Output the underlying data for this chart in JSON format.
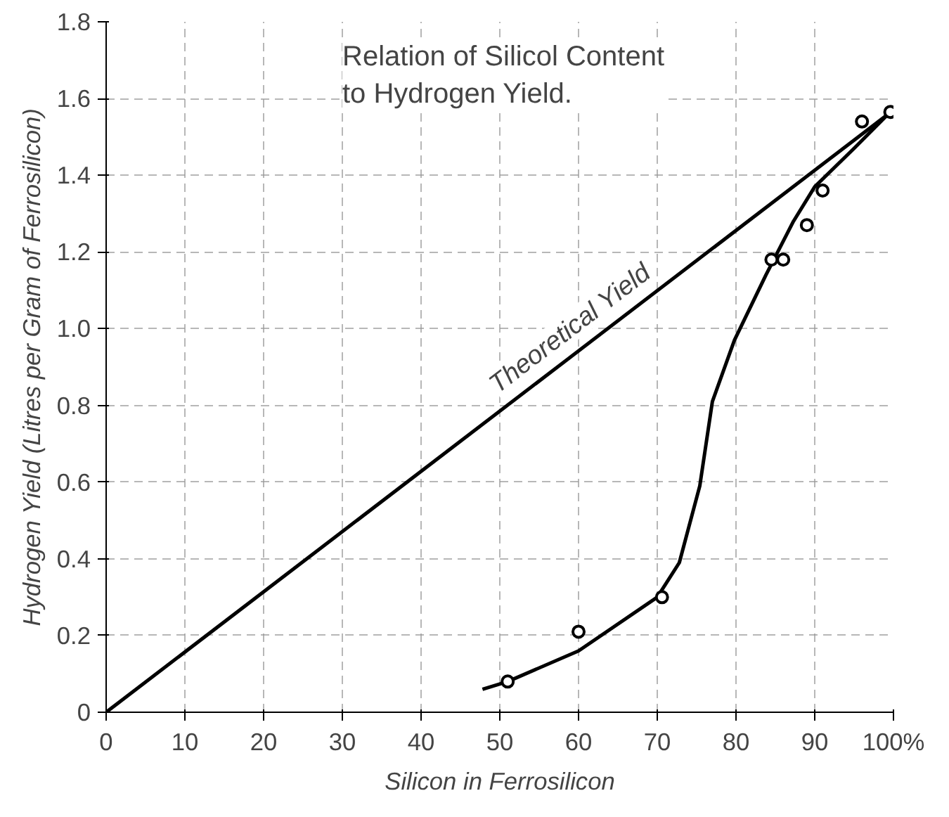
{
  "chart_data": {
    "type": "line",
    "title": "Relation of Silicol Content\nto Hydrogen Yield.",
    "xlabel": "Silicon in Ferrosilicon",
    "ylabel": "Hydrogen Yield (Litres per Gram of Ferrosilicon)",
    "xlim": [
      0,
      100
    ],
    "ylim": [
      0,
      1.8
    ],
    "xticks": [
      0,
      10,
      20,
      30,
      40,
      50,
      60,
      70,
      80,
      90,
      {
        "value": 100,
        "label": "100%"
      }
    ],
    "yticks": [
      0,
      0.2,
      0.4,
      0.6,
      0.8,
      {
        "value": 1.0,
        "label": "1.0"
      },
      1.2,
      1.4,
      1.6,
      1.8
    ],
    "grid": true,
    "series": [
      {
        "color": "#000000",
        "x": [
          0,
          100
        ],
        "values": [
          0,
          1.57
        ]
      },
      {
        "type": "line",
        "color": "#000000",
        "x": [
          47.8,
          51,
          60,
          70,
          72.8,
          75.4,
          77,
          79.8,
          83.8,
          87.3,
          90,
          95,
          99.6
        ],
        "values": [
          0.06,
          0.08,
          0.16,
          0.3,
          0.39,
          0.59,
          0.81,
          0.97,
          1.14,
          1.28,
          1.37,
          1.47,
          1.565
        ]
      },
      {
        "type": "scatter",
        "color": "#000000",
        "marker": "circle",
        "x": [
          51,
          60,
          70.6,
          84.5,
          86,
          89,
          91,
          96,
          99.6
        ],
        "values": [
          0.08,
          0.21,
          0.3,
          1.18,
          1.18,
          1.27,
          1.36,
          1.54,
          1.565
        ]
      }
    ],
    "annotations": [
      "Theoretical Yield"
    ]
  }
}
